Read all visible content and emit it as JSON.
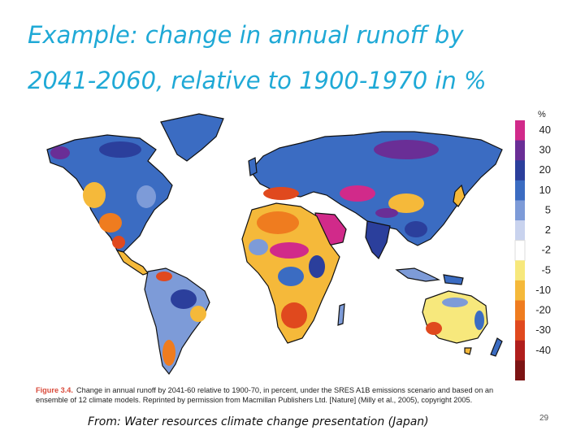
{
  "slide": {
    "title_line1": "Example: change in annual runoff by",
    "title_line2": "2041-2060, relative to 1900-1970 in %",
    "caption_label": "Figure 3.4.",
    "caption_text": "Change in annual runoff by 2041-60 relative to 1900-70, in percent, under the SRES A1B emissions scenario and based on an ensemble of 12 climate models. Reprinted by permission from Macmillan Publishers Ltd. [Nature] (Milly et al., 2005), copyright 2005.",
    "source": "From: Water resources climate change presentation (Japan)",
    "page_number": "29"
  },
  "legend": {
    "unit": "%",
    "items": [
      {
        "label": "40",
        "color": "#d12a8a"
      },
      {
        "label": "30",
        "color": "#6a2e96"
      },
      {
        "label": "20",
        "color": "#2b3f9c"
      },
      {
        "label": "10",
        "color": "#3b6cc2"
      },
      {
        "label": "5",
        "color": "#7d9bd8"
      },
      {
        "label": "2",
        "color": "#c9d3ee"
      },
      {
        "label": "-2",
        "color": "#ffffff"
      },
      {
        "label": "-5",
        "color": "#f7e87c"
      },
      {
        "label": "-10",
        "color": "#f5b93a"
      },
      {
        "label": "-20",
        "color": "#ef7c1f"
      },
      {
        "label": "-30",
        "color": "#e0491e"
      },
      {
        "label": "-40",
        "color": "#b01e1c"
      },
      {
        "label": "",
        "color": "#7c1414"
      }
    ]
  },
  "colors": {
    "title": "#1fa9d6",
    "ocean": "#ffffff",
    "land_base": "#c9d3ee"
  }
}
